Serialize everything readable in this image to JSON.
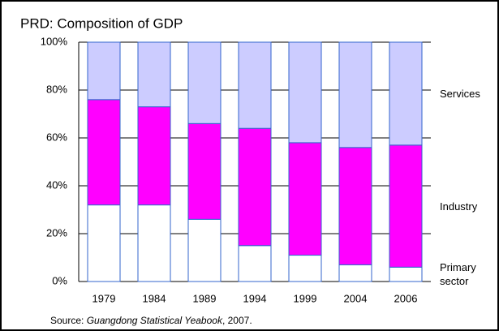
{
  "chart_data": {
    "type": "stacked_bar",
    "title": "PRD: Composition of GDP",
    "categories": [
      "1979",
      "1984",
      "1989",
      "1994",
      "1999",
      "2004",
      "2006"
    ],
    "series": [
      {
        "name": "Primary sector",
        "color": "#ffffff",
        "values": [
          32,
          32,
          26,
          15,
          11,
          7,
          6
        ]
      },
      {
        "name": "Industry",
        "color": "#ff00ff",
        "values": [
          44,
          41,
          40,
          49,
          47,
          49,
          51
        ]
      },
      {
        "name": "Services",
        "color": "#ccccff",
        "values": [
          24,
          27,
          34,
          36,
          42,
          44,
          43
        ]
      }
    ],
    "bar_edge_color": "#3366cc",
    "ylim": [
      0,
      100
    ],
    "yticks": [
      {
        "value": 0,
        "label": "0%"
      },
      {
        "value": 20,
        "label": "20%"
      },
      {
        "value": 40,
        "label": "40%"
      },
      {
        "value": 60,
        "label": "60%"
      },
      {
        "value": 80,
        "label": "80%"
      },
      {
        "value": 100,
        "label": "100%"
      }
    ],
    "grid": true,
    "source_prefix": "Source: ",
    "source_title": "Guangdong Statistical Yeabook",
    "source_suffix": ", 2007."
  }
}
